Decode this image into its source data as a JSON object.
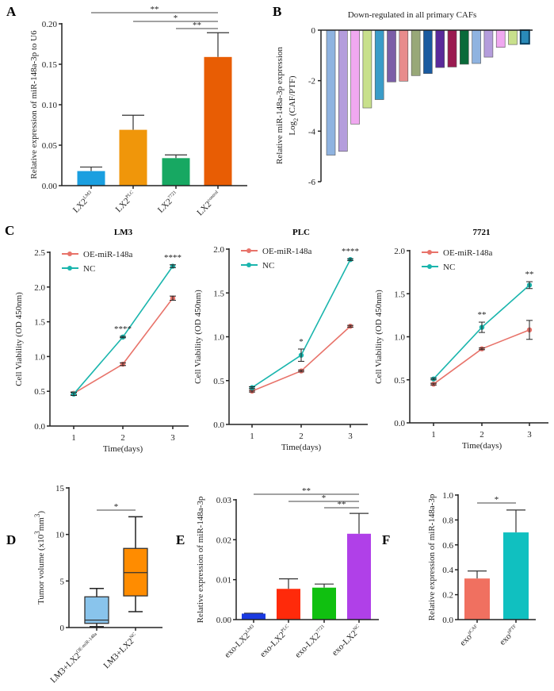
{
  "chart_data": [
    {
      "panel": "A",
      "type": "bar",
      "ylabel": "Relative expression of miR-148a-3p to U6",
      "ylim": [
        0,
        0.2
      ],
      "yticks": [
        "0.00",
        "0.05",
        "0.10",
        "0.15",
        "0.20"
      ],
      "categories": [
        {
          "base": "LX2",
          "sup": "LM3"
        },
        {
          "base": "LX2",
          "sup": "PLC"
        },
        {
          "base": "LX2",
          "sup": "7721"
        },
        {
          "base": "LX2",
          "sup": "control"
        }
      ],
      "values": [
        0.018,
        0.069,
        0.034,
        0.159
      ],
      "errors": [
        0.005,
        0.018,
        0.004,
        0.03
      ],
      "colors": [
        "#1a9fe0",
        "#f0960a",
        "#17a862",
        "#e85d04"
      ],
      "significance": [
        {
          "from": 0,
          "to": 3,
          "label": "**"
        },
        {
          "from": 1,
          "to": 3,
          "label": "*"
        },
        {
          "from": 2,
          "to": 3,
          "label": "**"
        }
      ]
    },
    {
      "panel": "B",
      "type": "bar",
      "title": "Down-regulated in all primary CAFs",
      "ylabel": {
        "line1": "Relative miR-148a-3p expression",
        "line2_pre": "Log",
        "line2_sub": "2",
        "line2_post": " (CAF/PTF)"
      },
      "ylim": [
        -6,
        0
      ],
      "yticks": [
        "0",
        "-2",
        "-4",
        "-6"
      ],
      "values": [
        -4.95,
        -4.8,
        -3.72,
        -3.08,
        -2.75,
        -2.05,
        -2.02,
        -1.8,
        -1.72,
        -1.48,
        -1.46,
        -1.35,
        -1.32,
        -1.07,
        -0.68,
        -0.57,
        -0.54
      ],
      "colors": [
        "#8fb3e0",
        "#b49ddc",
        "#f0a8f0",
        "#c8e08c",
        "#3a9cc8",
        "#7b5ea7",
        "#e88c8c",
        "#98a878",
        "#1a5aa0",
        "#5a2a9a",
        "#9a1a50",
        "#0a6a3a",
        "#8fb3e0",
        "#b49ddc",
        "#f0a8f0",
        "#c8e08c",
        "#2a8ab8"
      ]
    },
    {
      "panel": "C",
      "type": "line",
      "title": "LM3",
      "xlabel": "Time(days)",
      "ylabel": "Cell Viability (OD 450nm)",
      "x": [
        1,
        2,
        3
      ],
      "ylim": [
        0,
        2.5
      ],
      "yticks": [
        "0.0",
        "0.5",
        "1.0",
        "1.5",
        "2.0",
        "2.5"
      ],
      "series": [
        {
          "name": "OE-miR-148a",
          "color": "#e8736a",
          "values": [
            0.47,
            0.89,
            1.84
          ],
          "errors": [
            0.02,
            0.02,
            0.03
          ]
        },
        {
          "name": "NC",
          "color": "#1ab5ad",
          "values": [
            0.46,
            1.28,
            2.3
          ],
          "errors": [
            0.02,
            0.01,
            0.02
          ]
        }
      ],
      "significance": [
        {
          "x": 2,
          "label": "****"
        },
        {
          "x": 3,
          "label": "****"
        }
      ]
    },
    {
      "panel": "C",
      "type": "line",
      "title": "PLC",
      "xlabel": "Time(days)",
      "ylabel": "Cell Viability (OD 450nm)",
      "x": [
        1,
        2,
        3
      ],
      "ylim": [
        0,
        2.0
      ],
      "yticks": [
        "0.0",
        "0.5",
        "1.0",
        "1.5",
        "2.0"
      ],
      "series": [
        {
          "name": "OE-miR-148a",
          "color": "#e8736a",
          "values": [
            0.38,
            0.61,
            1.12
          ],
          "errors": [
            0.01,
            0.01,
            0.01
          ]
        },
        {
          "name": "NC",
          "color": "#1ab5ad",
          "values": [
            0.42,
            0.79,
            1.88
          ],
          "errors": [
            0.01,
            0.07,
            0.01
          ]
        }
      ],
      "significance": [
        {
          "x": 2,
          "label": "*"
        },
        {
          "x": 3,
          "label": "****"
        }
      ]
    },
    {
      "panel": "C",
      "type": "line",
      "title": "7721",
      "xlabel": "Time(days)",
      "ylabel": "Cell Viability (OD 450nm)",
      "x": [
        1,
        2,
        3
      ],
      "ylim": [
        0,
        2.0
      ],
      "yticks": [
        "0.0",
        "0.5",
        "1.0",
        "1.5",
        "2.0"
      ],
      "series": [
        {
          "name": "OE-miR-148a",
          "color": "#e8736a",
          "values": [
            0.45,
            0.86,
            1.08
          ],
          "errors": [
            0.01,
            0.01,
            0.11
          ]
        },
        {
          "name": "NC",
          "color": "#1ab5ad",
          "values": [
            0.51,
            1.11,
            1.6
          ],
          "errors": [
            0.01,
            0.06,
            0.04
          ]
        }
      ],
      "significance": [
        {
          "x": 2,
          "label": "**"
        },
        {
          "x": 3,
          "label": "**"
        }
      ]
    },
    {
      "panel": "D",
      "type": "box",
      "ylabel": {
        "pre": "Tumor volume (x10",
        "sup1": "3",
        "mid": "mm",
        "sup2": "3",
        "post": ")"
      },
      "ylim": [
        0,
        15
      ],
      "yticks": [
        "0",
        "5",
        "10",
        "15"
      ],
      "categories": [
        {
          "base": "LM3+LX2",
          "sup": "OE-miR-148a"
        },
        {
          "base": "LM3+LX2",
          "sup": "NC"
        }
      ],
      "boxes": [
        {
          "min": 0.1,
          "q1": 0.45,
          "median": 0.8,
          "q3": 3.3,
          "max": 4.2,
          "color": "#89c4ec"
        },
        {
          "min": 1.7,
          "q1": 3.4,
          "median": 5.9,
          "q3": 8.5,
          "max": 11.9,
          "color": "#ff8c00"
        }
      ],
      "significance": [
        {
          "from": 0,
          "to": 1,
          "label": "*"
        }
      ]
    },
    {
      "panel": "E",
      "type": "bar",
      "ylabel": "Relative expression of miR-148a-3p",
      "ylim": [
        0,
        0.03
      ],
      "yticks": [
        "0.00",
        "0.01",
        "0.02",
        "0.03"
      ],
      "categories": [
        {
          "base": "exo-LX2",
          "sup": "LM3"
        },
        {
          "base": "exo-LX2",
          "sup": "PLC"
        },
        {
          "base": "exo-LX2",
          "sup": "7721"
        },
        {
          "base": "exo-LX2",
          "sup": "NC"
        }
      ],
      "values": [
        0.0015,
        0.0077,
        0.008,
        0.0215
      ],
      "errors": [
        0.0001,
        0.0025,
        0.0009,
        0.0051
      ],
      "colors": [
        "#1a3ae0",
        "#ff2a0a",
        "#10c010",
        "#b040e8"
      ],
      "significance": [
        {
          "from": 0,
          "to": 3,
          "label": "**"
        },
        {
          "from": 1,
          "to": 3,
          "label": "*"
        },
        {
          "from": 2,
          "to": 3,
          "label": "**"
        }
      ]
    },
    {
      "panel": "F",
      "type": "bar",
      "ylabel": "Relative expression of miR-148a-3p",
      "ylim": [
        0,
        1.0
      ],
      "yticks": [
        "0.0",
        "0.2",
        "0.4",
        "0.6",
        "0.8",
        "1.0"
      ],
      "categories": [
        {
          "base": "exo",
          "sup": "pCAF"
        },
        {
          "base": "exo",
          "sup": "pPTF"
        }
      ],
      "values": [
        0.33,
        0.7
      ],
      "errors": [
        0.06,
        0.18
      ],
      "colors": [
        "#f07060",
        "#10c0c0"
      ],
      "significance": [
        {
          "from": 0,
          "to": 1,
          "label": "*"
        }
      ]
    }
  ],
  "panel_letters": [
    "A",
    "B",
    "C",
    "D",
    "E",
    "F"
  ]
}
